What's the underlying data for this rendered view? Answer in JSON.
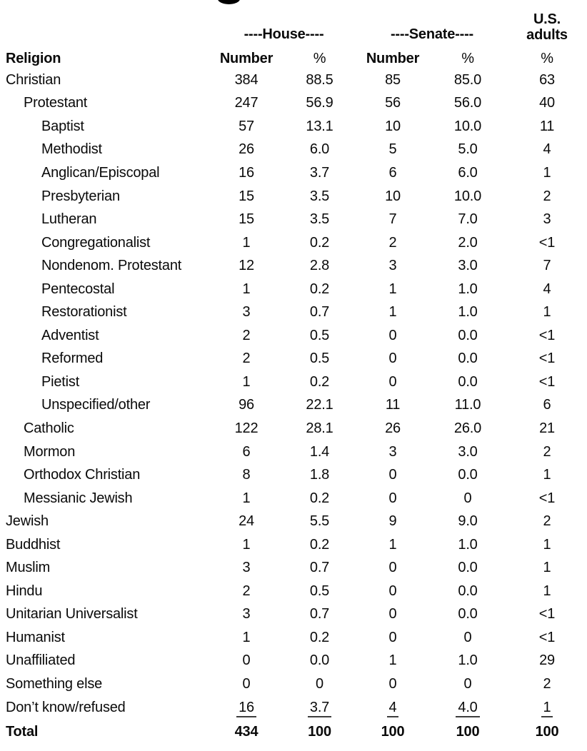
{
  "header": {
    "religion": "Religion",
    "house_group": "----House----",
    "senate_group": "----Senate----",
    "us_line1": "U.S.",
    "us_line2": "adults",
    "number": "Number",
    "pct": "%"
  },
  "chart_data": {
    "type": "table",
    "title": "",
    "column_groups": [
      "House",
      "Senate",
      "U.S. adults"
    ],
    "columns": [
      "Religion",
      "House Number",
      "House %",
      "Senate Number",
      "Senate %",
      "U.S. adults %"
    ],
    "rows": [
      {
        "label": "Christian",
        "indent": 0,
        "house_number": "384",
        "house_pct": "88.5",
        "senate_number": "85",
        "senate_pct": "85.0",
        "us_pct": "63"
      },
      {
        "label": "Protestant",
        "indent": 1,
        "house_number": "247",
        "house_pct": "56.9",
        "senate_number": "56",
        "senate_pct": "56.0",
        "us_pct": "40"
      },
      {
        "label": "Baptist",
        "indent": 2,
        "house_number": "57",
        "house_pct": "13.1",
        "senate_number": "10",
        "senate_pct": "10.0",
        "us_pct": "11"
      },
      {
        "label": "Methodist",
        "indent": 2,
        "house_number": "26",
        "house_pct": "6.0",
        "senate_number": "5",
        "senate_pct": "5.0",
        "us_pct": "4"
      },
      {
        "label": "Anglican/Episcopal",
        "indent": 2,
        "house_number": "16",
        "house_pct": "3.7",
        "senate_number": "6",
        "senate_pct": "6.0",
        "us_pct": "1"
      },
      {
        "label": "Presbyterian",
        "indent": 2,
        "house_number": "15",
        "house_pct": "3.5",
        "senate_number": "10",
        "senate_pct": "10.0",
        "us_pct": "2"
      },
      {
        "label": "Lutheran",
        "indent": 2,
        "house_number": "15",
        "house_pct": "3.5",
        "senate_number": "7",
        "senate_pct": "7.0",
        "us_pct": "3"
      },
      {
        "label": "Congregationalist",
        "indent": 2,
        "house_number": "1",
        "house_pct": "0.2",
        "senate_number": "2",
        "senate_pct": "2.0",
        "us_pct": "<1"
      },
      {
        "label": "Nondenom. Protestant",
        "indent": 2,
        "house_number": "12",
        "house_pct": "2.8",
        "senate_number": "3",
        "senate_pct": "3.0",
        "us_pct": "7"
      },
      {
        "label": "Pentecostal",
        "indent": 2,
        "house_number": "1",
        "house_pct": "0.2",
        "senate_number": "1",
        "senate_pct": "1.0",
        "us_pct": "4"
      },
      {
        "label": "Restorationist",
        "indent": 2,
        "house_number": "3",
        "house_pct": "0.7",
        "senate_number": "1",
        "senate_pct": "1.0",
        "us_pct": "1"
      },
      {
        "label": "Adventist",
        "indent": 2,
        "house_number": "2",
        "house_pct": "0.5",
        "senate_number": "0",
        "senate_pct": "0.0",
        "us_pct": "<1"
      },
      {
        "label": "Reformed",
        "indent": 2,
        "house_number": "2",
        "house_pct": "0.5",
        "senate_number": "0",
        "senate_pct": "0.0",
        "us_pct": "<1"
      },
      {
        "label": "Pietist",
        "indent": 2,
        "house_number": "1",
        "house_pct": "0.2",
        "senate_number": "0",
        "senate_pct": "0.0",
        "us_pct": "<1"
      },
      {
        "label": "Unspecified/other",
        "indent": 2,
        "house_number": "96",
        "house_pct": "22.1",
        "senate_number": "11",
        "senate_pct": "11.0",
        "us_pct": "6"
      },
      {
        "label": "Catholic",
        "indent": 1,
        "house_number": "122",
        "house_pct": "28.1",
        "senate_number": "26",
        "senate_pct": "26.0",
        "us_pct": "21"
      },
      {
        "label": "Mormon",
        "indent": 1,
        "house_number": "6",
        "house_pct": "1.4",
        "senate_number": "3",
        "senate_pct": "3.0",
        "us_pct": "2"
      },
      {
        "label": "Orthodox Christian",
        "indent": 1,
        "house_number": "8",
        "house_pct": "1.8",
        "senate_number": "0",
        "senate_pct": "0.0",
        "us_pct": "1"
      },
      {
        "label": "Messianic Jewish",
        "indent": 1,
        "house_number": "1",
        "house_pct": "0.2",
        "senate_number": "0",
        "senate_pct": "0",
        "us_pct": "<1"
      },
      {
        "label": "Jewish",
        "indent": 0,
        "house_number": "24",
        "house_pct": "5.5",
        "senate_number": "9",
        "senate_pct": "9.0",
        "us_pct": "2"
      },
      {
        "label": "Buddhist",
        "indent": 0,
        "house_number": "1",
        "house_pct": "0.2",
        "senate_number": "1",
        "senate_pct": "1.0",
        "us_pct": "1"
      },
      {
        "label": "Muslim",
        "indent": 0,
        "house_number": "3",
        "house_pct": "0.7",
        "senate_number": "0",
        "senate_pct": "0.0",
        "us_pct": "1"
      },
      {
        "label": "Hindu",
        "indent": 0,
        "house_number": "2",
        "house_pct": "0.5",
        "senate_number": "0",
        "senate_pct": "0.0",
        "us_pct": "1"
      },
      {
        "label": "Unitarian Universalist",
        "indent": 0,
        "house_number": "3",
        "house_pct": "0.7",
        "senate_number": "0",
        "senate_pct": "0.0",
        "us_pct": "<1"
      },
      {
        "label": "Humanist",
        "indent": 0,
        "house_number": "1",
        "house_pct": "0.2",
        "senate_number": "0",
        "senate_pct": "0",
        "us_pct": "<1"
      },
      {
        "label": "Unaffiliated",
        "indent": 0,
        "house_number": "0",
        "house_pct": "0.0",
        "senate_number": "1",
        "senate_pct": "1.0",
        "us_pct": "29"
      },
      {
        "label": "Something else",
        "indent": 0,
        "house_number": "0",
        "house_pct": "0",
        "senate_number": "0",
        "senate_pct": "0",
        "us_pct": "2"
      },
      {
        "label": "Don’t know/refused",
        "indent": 0,
        "underline": true,
        "house_number": "16",
        "house_pct": "3.7",
        "senate_number": "4",
        "senate_pct": "4.0",
        "us_pct": "1"
      },
      {
        "label": "Total",
        "indent": 0,
        "bold": true,
        "house_number": "434",
        "house_pct": "100",
        "senate_number": "100",
        "senate_pct": "100",
        "us_pct": "100"
      }
    ]
  }
}
